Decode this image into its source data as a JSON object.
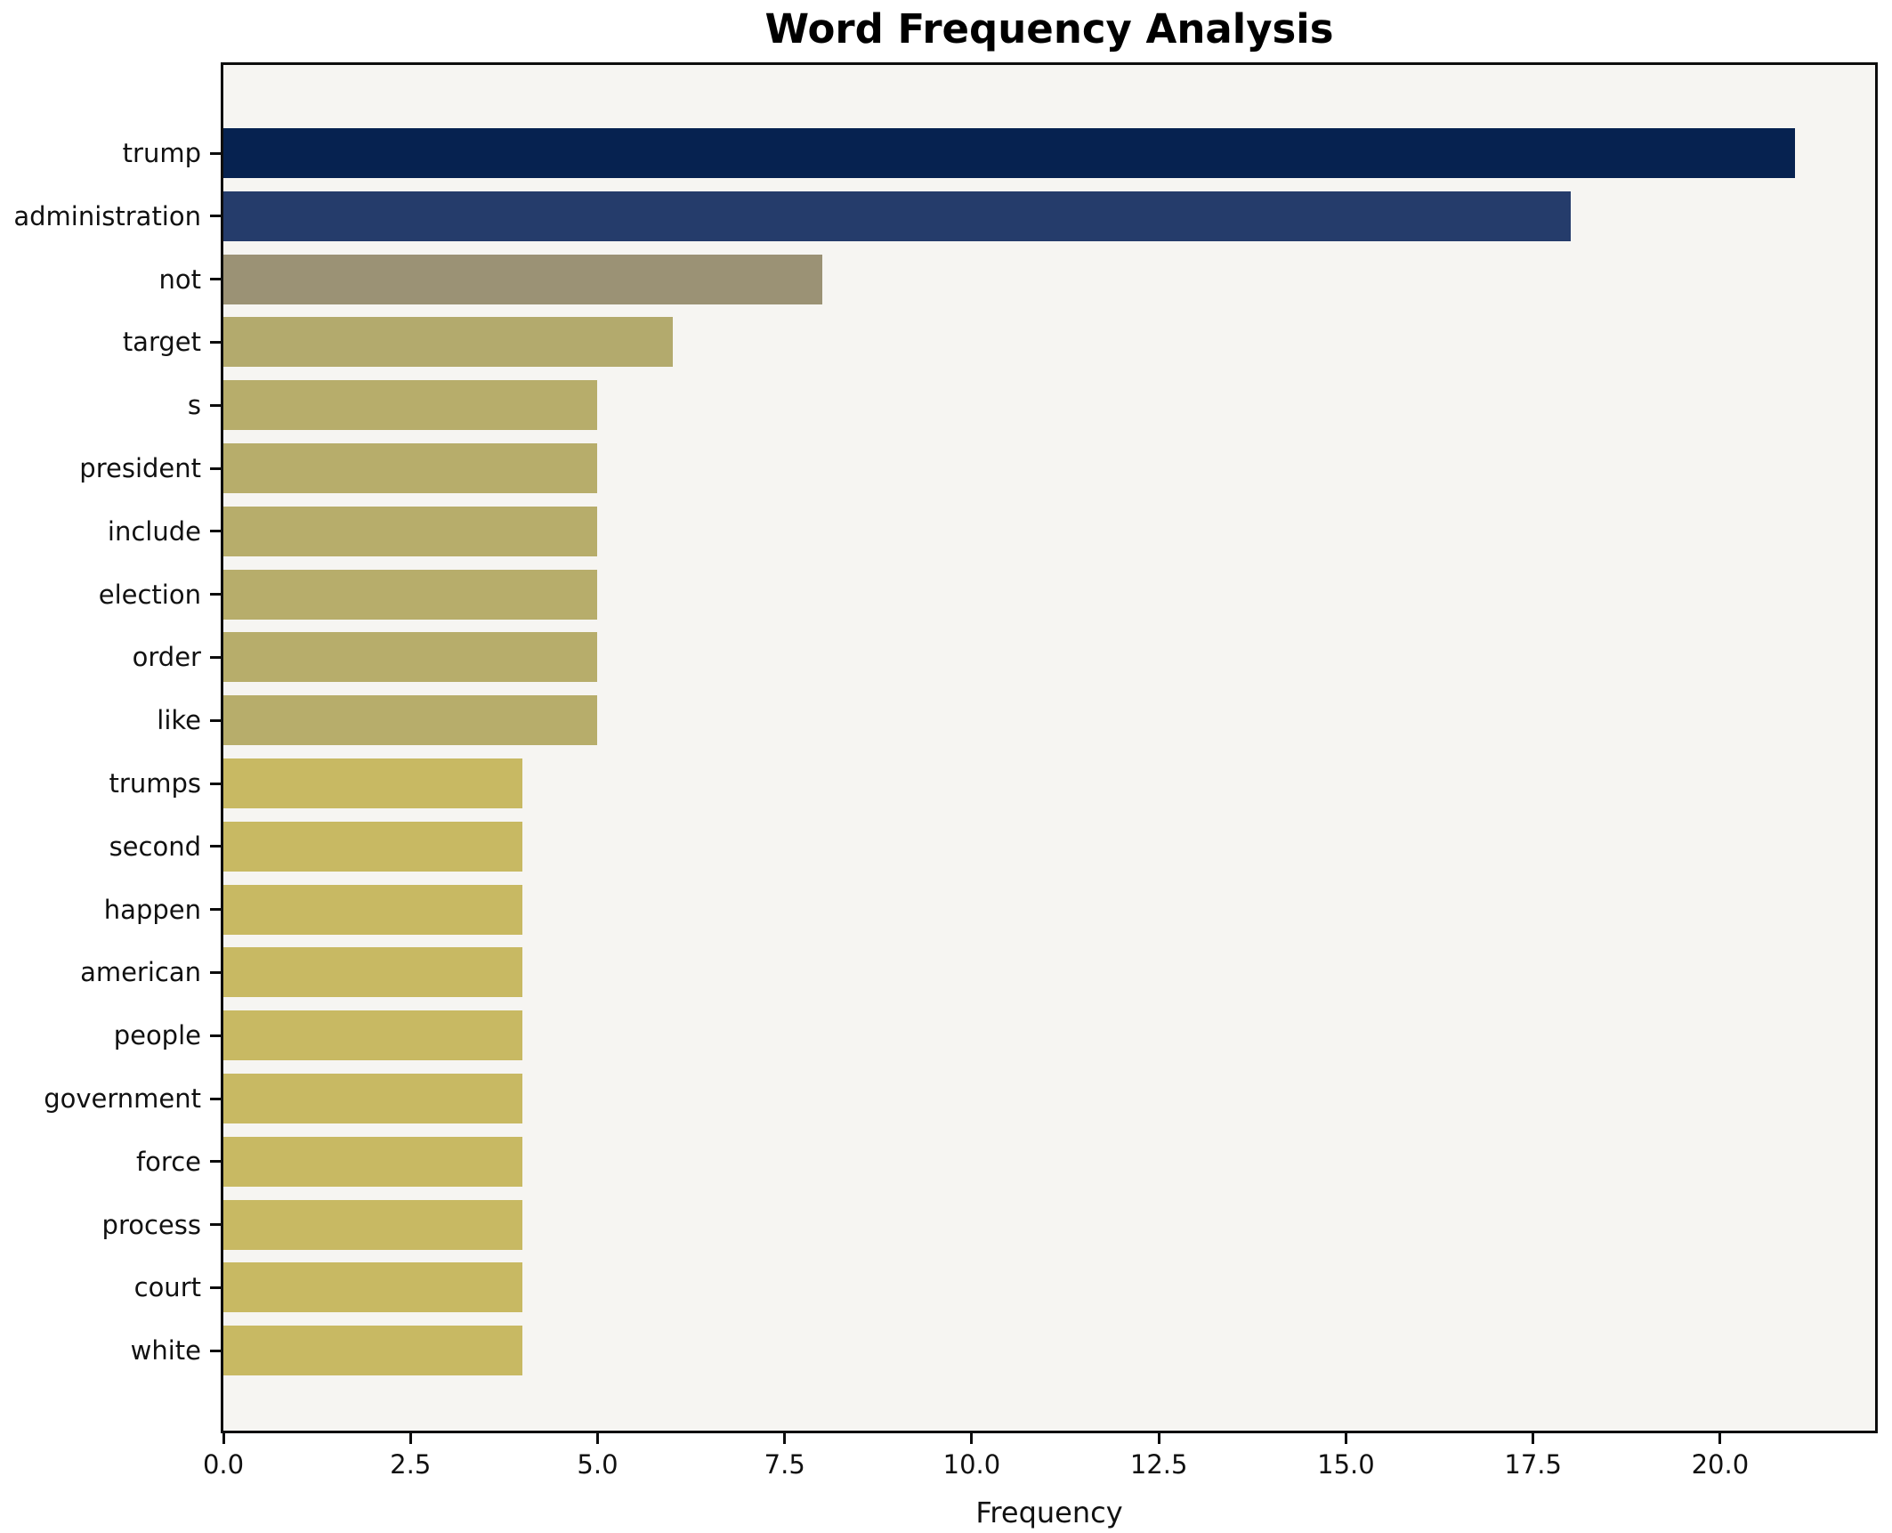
{
  "chart_data": {
    "type": "bar",
    "orientation": "horizontal",
    "title": "Word Frequency Analysis",
    "xlabel": "Frequency",
    "ylabel": "",
    "categories": [
      "trump",
      "administration",
      "not",
      "target",
      "s",
      "president",
      "include",
      "election",
      "order",
      "like",
      "trumps",
      "second",
      "happen",
      "american",
      "people",
      "government",
      "force",
      "process",
      "court",
      "white"
    ],
    "values": [
      21,
      18,
      8,
      6,
      5,
      5,
      5,
      5,
      5,
      5,
      4,
      4,
      4,
      4,
      4,
      4,
      4,
      4,
      4,
      4
    ],
    "bar_colors": [
      "#062250",
      "#253c6b",
      "#9b9275",
      "#b3aa6d",
      "#b7ad6b",
      "#b7ad6b",
      "#b7ad6b",
      "#b7ad6b",
      "#b7ad6b",
      "#b7ad6b",
      "#c8b963",
      "#c8b963",
      "#c8b963",
      "#c8b963",
      "#c8b963",
      "#c8b963",
      "#c8b963",
      "#c8b963",
      "#c8b963",
      "#c8b963"
    ],
    "xticks": [
      0,
      2.5,
      5,
      7.5,
      10,
      12.5,
      15,
      17.5,
      20
    ],
    "xtick_labels": [
      "0.0",
      "2.5",
      "5.0",
      "7.5",
      "10.0",
      "12.5",
      "15.0",
      "17.5",
      "20.0"
    ],
    "xlim": [
      0,
      22.07
    ],
    "grid": false,
    "legend": null,
    "plot_background": "#f6f5f2",
    "figure_background": "#ffffff",
    "spine_color": "#0d0d0d"
  }
}
